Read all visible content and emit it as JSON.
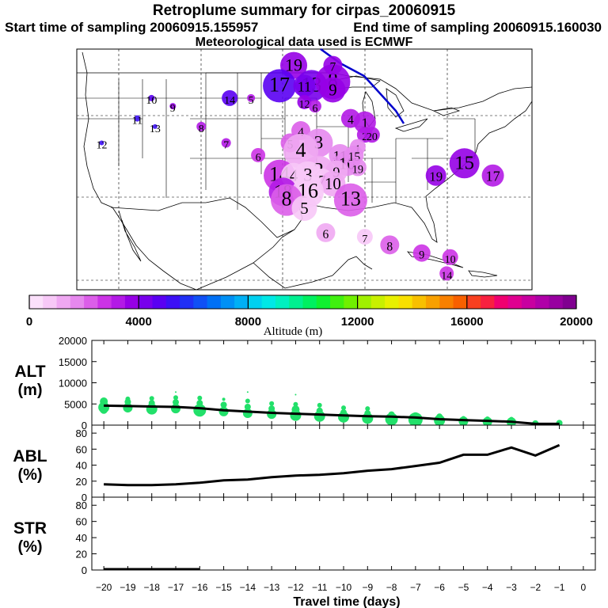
{
  "header": {
    "title": "Retroplume summary for cirpas_20060915",
    "start": "Start time of sampling 20060915.155957",
    "end": "End time of sampling 20060915.160030",
    "met": "Meteorological data used is ECMWF"
  },
  "colorbar": {
    "ticks": [
      0,
      4000,
      8000,
      12000,
      16000,
      20000
    ],
    "tick_labels": [
      "0",
      "4000",
      "8000",
      "12000",
      "16000",
      "20000"
    ],
    "label": "Altitude (m)",
    "colors": [
      "#fbe0fb",
      "#f7c8f7",
      "#efa8f2",
      "#e688ee",
      "#dc5ee9",
      "#cc33e6",
      "#b31ae6",
      "#9600e6",
      "#7800ec",
      "#5a00f2",
      "#3c10f5",
      "#2030f5",
      "#1050f5",
      "#0070f5",
      "#0090f5",
      "#00b0f5",
      "#00d0f0",
      "#00e8e6",
      "#00f0c0",
      "#00f090",
      "#00f060",
      "#10f030",
      "#40f010",
      "#70f000",
      "#a0f000",
      "#c8f000",
      "#e8f000",
      "#f8e000",
      "#f8c000",
      "#f8a000",
      "#f88000",
      "#f86000",
      "#f84020",
      "#f82040",
      "#f00070",
      "#e00090",
      "#c800a0",
      "#b000a8",
      "#9800a0",
      "#800090"
    ]
  },
  "map_plume": [
    {
      "day": 19,
      "lon": -94.5,
      "lat": 48.5,
      "alt": 3800,
      "r": 17
    },
    {
      "day": 17,
      "lon": -96.5,
      "lat": 46.0,
      "alt": 4800,
      "r": 21
    },
    {
      "day": 13,
      "lon": -92.0,
      "lat": 46.0,
      "alt": 4000,
      "r": 20
    },
    {
      "day": 11,
      "lon": -93.0,
      "lat": 46.0,
      "alt": 4200,
      "r": 14
    },
    {
      "day": 8,
      "lon": -89.0,
      "lat": 46.5,
      "alt": 3800,
      "r": 22
    },
    {
      "day": 9,
      "lon": -89.0,
      "lat": 45.5,
      "alt": 3600,
      "r": 16
    },
    {
      "day": 7,
      "lon": -89.0,
      "lat": 48.5,
      "alt": 3500,
      "r": 12
    },
    {
      "day": 12,
      "lon": -93.0,
      "lat": 44.0,
      "alt": 3500,
      "r": 9
    },
    {
      "day": 6,
      "lon": -91.5,
      "lat": 43.5,
      "alt": 3000,
      "r": 8
    },
    {
      "day": 14,
      "lon": -103.5,
      "lat": 44.5,
      "alt": 4600,
      "r": 10
    },
    {
      "day": 5,
      "lon": -100.5,
      "lat": 44.5,
      "alt": 3400,
      "r": 5
    },
    {
      "day": 10,
      "lon": -114.5,
      "lat": 44.5,
      "alt": 4800,
      "r": 4
    },
    {
      "day": 9,
      "lon": -111.5,
      "lat": 43.5,
      "alt": 3800,
      "r": 4
    },
    {
      "day": 11,
      "lon": -116.5,
      "lat": 42.0,
      "alt": 5000,
      "r": 4
    },
    {
      "day": 13,
      "lon": -114.0,
      "lat": 41.0,
      "alt": 5400,
      "r": 3
    },
    {
      "day": 12,
      "lon": -121.5,
      "lat": 39.0,
      "alt": 5000,
      "r": 3
    },
    {
      "day": 8,
      "lon": -107.5,
      "lat": 41.0,
      "alt": 3400,
      "r": 6
    },
    {
      "day": 7,
      "lon": -104.0,
      "lat": 39.0,
      "alt": 3200,
      "r": 6
    },
    {
      "day": 6,
      "lon": -99.5,
      "lat": 37.5,
      "alt": 2500,
      "r": 9
    },
    {
      "day": 4,
      "lon": -86.5,
      "lat": 42.0,
      "alt": 3200,
      "r": 12
    },
    {
      "day": 1,
      "lon": -84.5,
      "lat": 41.5,
      "alt": 3000,
      "r": 14
    },
    {
      "day": 2,
      "lon": -84.5,
      "lat": 40.0,
      "alt": 3100,
      "r": 10
    },
    {
      "day": 20,
      "lon": -83.5,
      "lat": 40.0,
      "alt": 3200,
      "r": 10
    },
    {
      "day": 4,
      "lon": -93.5,
      "lat": 40.5,
      "alt": 2200,
      "r": 12
    },
    {
      "day": 5,
      "lon": -95.0,
      "lat": 39.0,
      "alt": 2100,
      "r": 12
    },
    {
      "day": 3,
      "lon": -91.0,
      "lat": 39.0,
      "alt": 1500,
      "r": 18
    },
    {
      "day": 4,
      "lon": -93.5,
      "lat": 38.0,
      "alt": 1200,
      "r": 22
    },
    {
      "day": 1,
      "lon": -85.5,
      "lat": 38.5,
      "alt": 1500,
      "r": 10
    },
    {
      "day": 11,
      "lon": -88.0,
      "lat": 37.5,
      "alt": 1800,
      "r": 14
    },
    {
      "day": 10,
      "lon": -87.0,
      "lat": 36.5,
      "alt": 1500,
      "r": 16
    },
    {
      "day": 15,
      "lon": -86.0,
      "lat": 37.5,
      "alt": 1700,
      "r": 12
    },
    {
      "day": 19,
      "lon": -85.5,
      "lat": 36.0,
      "alt": 1800,
      "r": 11
    },
    {
      "day": 2,
      "lon": -91.0,
      "lat": 35.5,
      "alt": 1000,
      "r": 20
    },
    {
      "day": 9,
      "lon": -88.5,
      "lat": 35.5,
      "alt": 1300,
      "r": 14
    },
    {
      "day": 14,
      "lon": -96.5,
      "lat": 35.0,
      "alt": 2500,
      "r": 20
    },
    {
      "day": 4,
      "lon": -94.5,
      "lat": 35.0,
      "alt": 800,
      "r": 16
    },
    {
      "day": 3,
      "lon": -92.5,
      "lat": 35.0,
      "alt": 900,
      "r": 18
    },
    {
      "day": 7,
      "lon": -90.5,
      "lat": 34.5,
      "alt": 900,
      "r": 14
    },
    {
      "day": 10,
      "lon": -89.0,
      "lat": 34.0,
      "alt": 1100,
      "r": 16
    },
    {
      "day": 18,
      "lon": -96.0,
      "lat": 33.0,
      "alt": 3000,
      "r": 18
    },
    {
      "day": 16,
      "lon": -92.5,
      "lat": 33.0,
      "alt": 900,
      "r": 20
    },
    {
      "day": 8,
      "lon": -95.5,
      "lat": 32.0,
      "alt": 2000,
      "r": 20
    },
    {
      "day": 5,
      "lon": -93.0,
      "lat": 31.0,
      "alt": 800,
      "r": 16
    },
    {
      "day": 13,
      "lon": -86.5,
      "lat": 32.0,
      "alt": 2300,
      "r": 21
    },
    {
      "day": 6,
      "lon": -90.0,
      "lat": 28.0,
      "alt": 1000,
      "r": 12
    },
    {
      "day": 7,
      "lon": -84.5,
      "lat": 27.5,
      "alt": 800,
      "r": 10
    },
    {
      "day": 8,
      "lon": -81.0,
      "lat": 26.5,
      "alt": 2300,
      "r": 12
    },
    {
      "day": 9,
      "lon": -76.5,
      "lat": 25.5,
      "alt": 2800,
      "r": 11
    },
    {
      "day": 10,
      "lon": -72.5,
      "lat": 25.0,
      "alt": 2700,
      "r": 10
    },
    {
      "day": 14,
      "lon": -73.0,
      "lat": 23.0,
      "alt": 2600,
      "r": 9
    },
    {
      "day": 19,
      "lon": -74.5,
      "lat": 35.0,
      "alt": 3900,
      "r": 13
    },
    {
      "day": 15,
      "lon": -70.5,
      "lat": 36.5,
      "alt": 3600,
      "r": 19
    },
    {
      "day": 17,
      "lon": -66.5,
      "lat": 35.0,
      "alt": 3000,
      "r": 14
    }
  ],
  "chart_data": [
    {
      "type": "scatter",
      "name": "ALT",
      "title": "ALT",
      "unit": "(m)",
      "xlabel": "Travel time (days)",
      "x_ticks": [
        -20,
        -19,
        -18,
        -17,
        -16,
        -15,
        -14,
        -13,
        -12,
        -11,
        -10,
        -9,
        -8,
        -7,
        -6,
        -5,
        -4,
        -3,
        -2,
        -1,
        0
      ],
      "x_tick_labels": [
        "−20",
        "−19",
        "−18",
        "−17",
        "−16",
        "−15",
        "−14",
        "−13",
        "−12",
        "−11",
        "−10",
        "−9",
        "−8",
        "−7",
        "−6",
        "−5",
        "−4",
        "−3",
        "−2",
        "−1",
        "0"
      ],
      "xlim": [
        -20,
        0
      ],
      "ylim": [
        0,
        20000
      ],
      "y_ticks": [
        0,
        5000,
        10000,
        15000,
        20000
      ],
      "y_tick_labels": [
        "0",
        "5000",
        "10000",
        "15000",
        "20000"
      ],
      "mean_line": {
        "x": [
          -20,
          -19,
          -18,
          -17,
          -16,
          -15,
          -14,
          -13,
          -12,
          -11,
          -10,
          -9,
          -8,
          -7,
          -6,
          -5,
          -4,
          -3,
          -2,
          -1
        ],
        "y": [
          4600,
          4500,
          4400,
          4300,
          4000,
          3500,
          3200,
          2900,
          2700,
          2500,
          2300,
          2100,
          2000,
          1800,
          1400,
          1200,
          1000,
          800,
          300,
          300
        ]
      },
      "points": [
        {
          "x": -20,
          "y": 4200,
          "r": 7
        },
        {
          "x": -20,
          "y": 5600,
          "r": 5
        },
        {
          "x": -20,
          "y": 3600,
          "r": 5
        },
        {
          "x": -19,
          "y": 4100,
          "r": 6
        },
        {
          "x": -19,
          "y": 5500,
          "r": 4
        },
        {
          "x": -19,
          "y": 6200,
          "r": 3
        },
        {
          "x": -18,
          "y": 3800,
          "r": 7
        },
        {
          "x": -18,
          "y": 5200,
          "r": 4
        },
        {
          "x": -18,
          "y": 6300,
          "r": 3
        },
        {
          "x": -17,
          "y": 3900,
          "r": 6
        },
        {
          "x": -17,
          "y": 5400,
          "r": 4
        },
        {
          "x": -17,
          "y": 6500,
          "r": 3
        },
        {
          "x": -17,
          "y": 7800,
          "r": 1
        },
        {
          "x": -16,
          "y": 3500,
          "r": 8
        },
        {
          "x": -16,
          "y": 5200,
          "r": 4
        },
        {
          "x": -16,
          "y": 6400,
          "r": 3
        },
        {
          "x": -15,
          "y": 3200,
          "r": 6
        },
        {
          "x": -15,
          "y": 4800,
          "r": 4
        },
        {
          "x": -15,
          "y": 6100,
          "r": 2
        },
        {
          "x": -14,
          "y": 2800,
          "r": 6
        },
        {
          "x": -14,
          "y": 4300,
          "r": 4
        },
        {
          "x": -14,
          "y": 5700,
          "r": 3
        },
        {
          "x": -14,
          "y": 7800,
          "r": 1
        },
        {
          "x": -13,
          "y": 2600,
          "r": 6
        },
        {
          "x": -13,
          "y": 3900,
          "r": 4
        },
        {
          "x": -13,
          "y": 5100,
          "r": 3
        },
        {
          "x": -12,
          "y": 2300,
          "r": 7
        },
        {
          "x": -12,
          "y": 3700,
          "r": 5
        },
        {
          "x": -12,
          "y": 4900,
          "r": 3
        },
        {
          "x": -12,
          "y": 7200,
          "r": 1
        },
        {
          "x": -11,
          "y": 2100,
          "r": 7
        },
        {
          "x": -11,
          "y": 3400,
          "r": 4
        },
        {
          "x": -11,
          "y": 4700,
          "r": 3
        },
        {
          "x": -10,
          "y": 1900,
          "r": 7
        },
        {
          "x": -10,
          "y": 3000,
          "r": 4
        },
        {
          "x": -10,
          "y": 4100,
          "r": 3
        },
        {
          "x": -9,
          "y": 1600,
          "r": 7
        },
        {
          "x": -9,
          "y": 2800,
          "r": 4
        },
        {
          "x": -9,
          "y": 3900,
          "r": 3
        },
        {
          "x": -8,
          "y": 1400,
          "r": 8
        },
        {
          "x": -8,
          "y": 2500,
          "r": 4
        },
        {
          "x": -7,
          "y": 1300,
          "r": 9
        },
        {
          "x": -7,
          "y": 2300,
          "r": 4
        },
        {
          "x": -6,
          "y": 1100,
          "r": 7
        },
        {
          "x": -6,
          "y": 2000,
          "r": 4
        },
        {
          "x": -5,
          "y": 900,
          "r": 6
        },
        {
          "x": -5,
          "y": 1600,
          "r": 3
        },
        {
          "x": -4,
          "y": 800,
          "r": 6
        },
        {
          "x": -4,
          "y": 1500,
          "r": 3
        },
        {
          "x": -3,
          "y": 700,
          "r": 6
        },
        {
          "x": -3,
          "y": 1400,
          "r": 3
        },
        {
          "x": -2,
          "y": 400,
          "r": 4
        },
        {
          "x": -1,
          "y": 500,
          "r": 4
        }
      ]
    },
    {
      "type": "line",
      "name": "ABL",
      "title": "ABL",
      "unit": "(%)",
      "xlim": [
        -20,
        0
      ],
      "ylim": [
        0,
        90
      ],
      "y_ticks": [
        0,
        20,
        40,
        60,
        80
      ],
      "y_tick_labels": [
        "0",
        "20",
        "40",
        "60",
        "80"
      ],
      "x": [
        -20,
        -19,
        -18,
        -17,
        -16,
        -15,
        -14,
        -13,
        -12,
        -11,
        -10,
        -9,
        -8,
        -7,
        -6,
        -5,
        -4,
        -3,
        -2,
        -1
      ],
      "y": [
        16,
        15,
        15,
        16,
        18,
        21,
        22,
        25,
        27,
        28,
        30,
        33,
        35,
        39,
        43,
        53,
        53,
        62,
        52,
        65
      ]
    },
    {
      "type": "line",
      "name": "STR",
      "title": "STR",
      "unit": "(%)",
      "xlim": [
        -20,
        0
      ],
      "ylim": [
        0,
        90
      ],
      "y_ticks": [
        0,
        20,
        40,
        60,
        80
      ],
      "y_tick_labels": [
        "0",
        "20",
        "40",
        "60",
        "80"
      ],
      "x": [
        -20,
        -19,
        -18,
        -17,
        -16
      ],
      "y": [
        1,
        1,
        1,
        1,
        1
      ]
    }
  ]
}
